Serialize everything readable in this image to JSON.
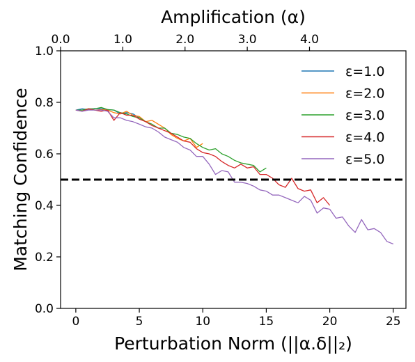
{
  "chart_data": {
    "type": "line",
    "xlabel": "Perturbation Norm (||α.δ||₂)",
    "ylabel": "Matching Confidence",
    "x2label": "Amplification (α)",
    "xlim": [
      -1.2,
      26.0
    ],
    "ylim": [
      0.0,
      1.0
    ],
    "xticks": [
      0,
      5,
      10,
      15,
      20,
      25
    ],
    "xtick_labels": [
      "0",
      "5",
      "10",
      "15",
      "20",
      "25"
    ],
    "yticks": [
      0.0,
      0.2,
      0.4,
      0.6,
      0.8,
      1.0
    ],
    "ytick_labels": [
      "0.0",
      "0.2",
      "0.4",
      "0.6",
      "0.8",
      "1.0"
    ],
    "x2ticks": [
      0.0,
      1.0,
      2.0,
      3.0,
      4.0
    ],
    "x2tick_labels": [
      "0.0",
      "1.0",
      "2.0",
      "3.0",
      "4.0"
    ],
    "x2lim": [
      0.0,
      5.55
    ],
    "grid": false,
    "legend_position": "top-right",
    "reference_line": {
      "y": 0.5,
      "color": "#000000",
      "style": "dashed"
    },
    "series": [
      {
        "name": "ε=1.0",
        "color": "#1f77b4",
        "x": [
          0,
          0.5,
          1,
          1.5,
          2,
          2.5,
          3,
          3.5,
          4,
          4.5,
          5
        ],
        "y": [
          0.77,
          0.775,
          0.772,
          0.776,
          0.775,
          0.772,
          0.77,
          0.755,
          0.76,
          0.755,
          0.74
        ]
      },
      {
        "name": "ε=2.0",
        "color": "#ff7f0e",
        "x": [
          0,
          0.5,
          1,
          1.5,
          2,
          2.5,
          3,
          3.5,
          4,
          4.5,
          5,
          5.5,
          6,
          6.5,
          7,
          7.5,
          8,
          8.5,
          9,
          9.5,
          10
        ],
        "y": [
          0.77,
          0.77,
          0.775,
          0.77,
          0.772,
          0.77,
          0.76,
          0.755,
          0.765,
          0.75,
          0.745,
          0.725,
          0.73,
          0.715,
          0.7,
          0.675,
          0.66,
          0.65,
          0.66,
          0.625,
          0.64
        ]
      },
      {
        "name": "ε=3.0",
        "color": "#2ca02c",
        "x": [
          0,
          0.5,
          1,
          1.5,
          2,
          2.5,
          3,
          3.5,
          4,
          4.5,
          5,
          5.5,
          6,
          6.5,
          7,
          7.5,
          8,
          8.5,
          9,
          9.5,
          10,
          10.5,
          11,
          11.5,
          12,
          12.5,
          13,
          13.5,
          14,
          14.5,
          15
        ],
        "y": [
          0.77,
          0.77,
          0.775,
          0.775,
          0.78,
          0.772,
          0.77,
          0.76,
          0.755,
          0.745,
          0.74,
          0.725,
          0.715,
          0.7,
          0.7,
          0.68,
          0.675,
          0.665,
          0.66,
          0.64,
          0.625,
          0.615,
          0.62,
          0.6,
          0.59,
          0.575,
          0.565,
          0.56,
          0.555,
          0.53,
          0.545
        ]
      },
      {
        "name": "ε=4.0",
        "color": "#d62728",
        "x": [
          0,
          0.5,
          1,
          1.5,
          2,
          2.5,
          3,
          3.5,
          4,
          4.5,
          5,
          5.5,
          6,
          6.5,
          7,
          7.5,
          8,
          8.5,
          9,
          9.5,
          10,
          10.5,
          11,
          11.5,
          12,
          12.5,
          13,
          13.5,
          14,
          14.5,
          15,
          15.5,
          16,
          16.5,
          17,
          17.5,
          18,
          18.5,
          19,
          19.5,
          20
        ],
        "y": [
          0.77,
          0.765,
          0.775,
          0.77,
          0.765,
          0.77,
          0.73,
          0.76,
          0.75,
          0.75,
          0.735,
          0.725,
          0.71,
          0.7,
          0.69,
          0.68,
          0.665,
          0.65,
          0.645,
          0.62,
          0.605,
          0.6,
          0.59,
          0.57,
          0.555,
          0.545,
          0.56,
          0.545,
          0.55,
          0.52,
          0.52,
          0.505,
          0.48,
          0.47,
          0.505,
          0.465,
          0.455,
          0.46,
          0.41,
          0.43,
          0.4
        ]
      },
      {
        "name": "ε=5.0",
        "color": "#9467bd",
        "x": [
          0,
          0.5,
          1,
          1.5,
          2,
          2.5,
          3,
          3.5,
          4,
          4.5,
          5,
          5.5,
          6,
          6.5,
          7,
          7.5,
          8,
          8.5,
          9,
          9.5,
          10,
          10.5,
          11,
          11.5,
          12,
          12.5,
          13,
          13.5,
          14,
          14.5,
          15,
          15.5,
          16,
          16.5,
          17,
          17.5,
          18,
          18.5,
          19,
          19.5,
          20,
          20.5,
          21,
          21.5,
          22,
          22.5,
          23,
          23.5,
          24,
          24.5,
          25
        ],
        "y": [
          0.77,
          0.765,
          0.77,
          0.77,
          0.77,
          0.765,
          0.74,
          0.74,
          0.73,
          0.725,
          0.715,
          0.705,
          0.7,
          0.685,
          0.665,
          0.655,
          0.645,
          0.625,
          0.615,
          0.59,
          0.59,
          0.56,
          0.52,
          0.535,
          0.53,
          0.49,
          0.49,
          0.485,
          0.475,
          0.46,
          0.455,
          0.44,
          0.44,
          0.43,
          0.42,
          0.41,
          0.435,
          0.42,
          0.37,
          0.39,
          0.385,
          0.35,
          0.355,
          0.32,
          0.295,
          0.345,
          0.305,
          0.31,
          0.295,
          0.26,
          0.25
        ]
      }
    ]
  }
}
